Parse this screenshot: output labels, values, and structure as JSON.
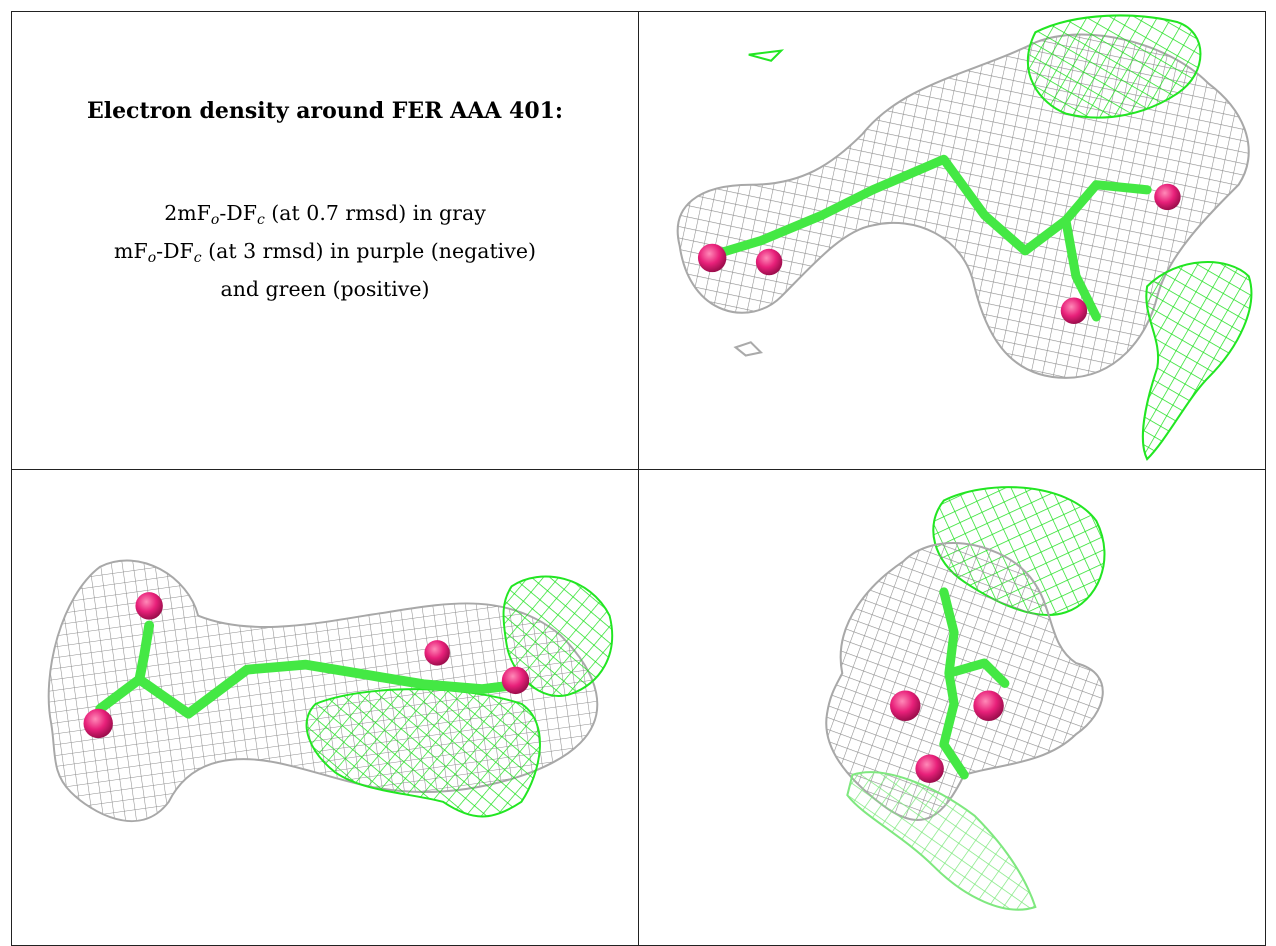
{
  "caption": {
    "title": "Electron density around FER AAA 401:",
    "line1": {
      "prefix": "2mF",
      "o": "o",
      "mid": "-DF",
      "c": "c",
      "suffix": " (at 0.7 rmsd) in gray"
    },
    "line2": {
      "prefix": "mF",
      "o": "o",
      "mid": "-DF",
      "c": "c",
      "suffix": " (at 3 rmsd) in purple (negative)"
    },
    "line3": "and green (positive)"
  },
  "colors": {
    "gray_mesh": "#9a9a9a",
    "green_mesh": "#22e622",
    "light_green_mesh": "#7fe87f",
    "ligand_stick": "#44e844",
    "oxygen_atom": "#e8207a",
    "border": "#222222"
  },
  "panels": [
    {
      "name": "view-top-right"
    },
    {
      "name": "view-bottom-left"
    },
    {
      "name": "view-bottom-right"
    }
  ]
}
